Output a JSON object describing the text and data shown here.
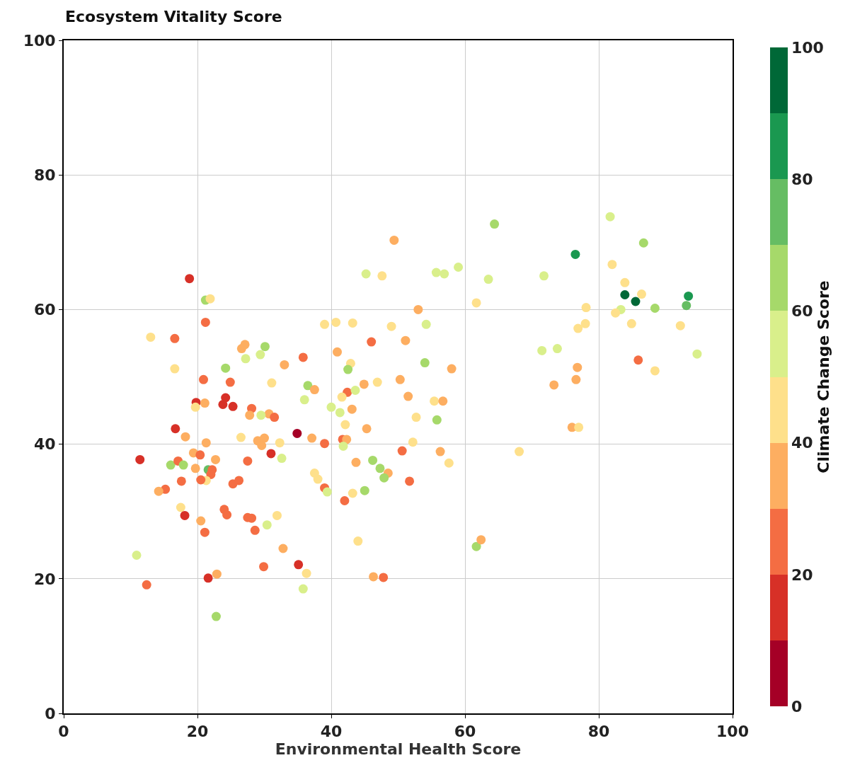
{
  "chart_data": {
    "type": "scatter",
    "ylabel": "Ecosystem Vitality Score",
    "xlabel": "Environmental Health Score",
    "clabel": "Climate Change Score",
    "x": [
      18.8,
      21.2,
      21.9,
      21.2,
      13.0,
      16.6,
      16.6,
      24.2,
      20.9,
      24.9,
      24.2,
      23.8,
      25.3,
      19.8,
      19.7,
      21.1,
      26.6,
      27.1,
      27.2,
      16.7,
      18.2,
      21.3,
      26.5,
      11.4,
      16.0,
      17.1,
      17.9,
      19.4,
      20.4,
      22.7,
      19.7,
      21.6,
      22.2,
      22.0,
      21.3,
      20.5,
      17.6,
      15.2,
      14.2,
      25.3,
      26.2,
      27.5,
      17.5,
      18.1,
      20.5,
      21.1,
      24.0,
      24.4,
      27.5,
      10.9,
      12.4,
      21.6,
      22.9,
      22.8,
      49.4,
      45.2,
      47.6,
      55.7,
      56.9,
      59.0,
      61.7,
      53.0,
      54.2,
      39.0,
      40.7,
      43.2,
      49.0,
      51.1,
      46.0,
      30.1,
      29.4,
      35.8,
      33.0,
      40.9,
      42.9,
      42.5,
      54.0,
      58.0,
      31.1,
      36.5,
      37.5,
      36.0,
      42.4,
      43.6,
      41.6,
      44.9,
      46.9,
      50.3,
      51.5,
      55.4,
      56.7,
      40.0,
      41.3,
      43.1,
      28.1,
      30.7,
      31.5,
      29.5,
      27.8,
      52.7,
      55.8,
      45.3,
      42.1,
      34.9,
      37.1,
      39.0,
      29.0,
      30.0,
      29.6,
      32.3,
      31.0,
      32.6,
      37.5,
      38.0,
      39.0,
      39.4,
      41.7,
      42.3,
      41.8,
      43.2,
      45.0,
      42.0,
      43.7,
      46.2,
      47.3,
      48.5,
      47.9,
      50.6,
      52.2,
      56.3,
      57.6,
      51.7,
      28.1,
      28.6,
      30.4,
      31.9,
      32.8,
      29.9,
      35.1,
      36.3,
      35.8,
      44.0,
      46.3,
      47.8,
      61.7,
      62.4,
      64.4,
      81.7,
      86.7,
      76.5,
      63.5,
      71.8,
      82.0,
      83.9,
      83.9,
      86.4,
      85.5,
      93.4,
      93.1,
      88.4,
      78.1,
      83.3,
      82.5,
      84.9,
      92.2,
      78.0,
      76.9,
      71.5,
      73.8,
      94.7,
      85.9,
      88.4,
      76.8,
      76.6,
      73.3,
      76.0,
      77.0,
      68.1
    ],
    "values": [
      64.6,
      61.4,
      61.6,
      58.1,
      55.9,
      55.7,
      51.2,
      51.3,
      49.6,
      49.2,
      46.9,
      45.9,
      45.6,
      46.2,
      45.5,
      46.1,
      54.2,
      54.8,
      52.7,
      42.3,
      41.1,
      40.2,
      41.0,
      37.7,
      36.9,
      37.5,
      36.9,
      38.7,
      38.4,
      37.7,
      36.4,
      36.2,
      36.2,
      35.5,
      34.6,
      34.7,
      34.5,
      33.3,
      33.0,
      34.1,
      34.6,
      37.5,
      30.6,
      29.4,
      28.6,
      26.9,
      30.3,
      29.5,
      29.1,
      23.5,
      19.1,
      20.1,
      20.7,
      14.4,
      70.3,
      65.3,
      65.0,
      65.5,
      65.3,
      66.3,
      61.0,
      60.0,
      57.8,
      57.8,
      58.1,
      58.0,
      57.5,
      55.4,
      55.2,
      54.5,
      53.3,
      52.9,
      51.8,
      53.7,
      52.0,
      51.1,
      52.1,
      51.2,
      49.1,
      48.7,
      48.1,
      46.6,
      47.7,
      48.0,
      47.0,
      48.9,
      49.2,
      49.6,
      47.1,
      46.4,
      46.4,
      45.5,
      44.7,
      45.2,
      45.3,
      44.5,
      44.0,
      44.3,
      44.3,
      44.0,
      43.6,
      42.3,
      42.9,
      41.6,
      40.9,
      40.1,
      40.5,
      40.9,
      39.8,
      40.2,
      38.6,
      37.9,
      35.7,
      34.8,
      33.5,
      32.9,
      40.7,
      40.7,
      39.7,
      32.7,
      33.1,
      31.6,
      37.3,
      37.6,
      36.4,
      35.7,
      35.0,
      39.0,
      40.3,
      38.9,
      37.2,
      34.5,
      29.0,
      27.2,
      28.0,
      29.4,
      24.5,
      21.8,
      22.1,
      20.8,
      18.5,
      25.6,
      20.3,
      20.2,
      24.8,
      25.8,
      72.7,
      73.8,
      69.9,
      68.2,
      64.5,
      65.0,
      66.7,
      64.0,
      62.2,
      62.3,
      61.2,
      62.0,
      60.6,
      60.2,
      60.3,
      60.0,
      59.5,
      57.9,
      57.6,
      57.9,
      57.2,
      53.9,
      54.2,
      53.4,
      52.5,
      50.9,
      51.4,
      49.6,
      48.8,
      42.5,
      42.5,
      38.9
    ],
    "colors": [
      "#d73027",
      "#a6d96a",
      "#fee08b",
      "#f46d43",
      "#fee08b",
      "#f46d43",
      "#fee08b",
      "#a6d96a",
      "#f46d43",
      "#f46d43",
      "#d73027",
      "#d73027",
      "#d73027",
      "#d73027",
      "#fee08b",
      "#fdae61",
      "#fdae61",
      "#fdae61",
      "#d9ef8b",
      "#d73027",
      "#fdae61",
      "#fdae61",
      "#fee08b",
      "#d73027",
      "#a6d96a",
      "#f46d43",
      "#a6d96a",
      "#fdae61",
      "#f46d43",
      "#fdae61",
      "#fdae61",
      "#66bd63",
      "#f46d43",
      "#f46d43",
      "#fee08b",
      "#f46d43",
      "#f46d43",
      "#f46d43",
      "#fdae61",
      "#f46d43",
      "#f46d43",
      "#f46d43",
      "#fee08b",
      "#d73027",
      "#fdae61",
      "#f46d43",
      "#f46d43",
      "#f46d43",
      "#f46d43",
      "#d9ef8b",
      "#f46d43",
      "#d73027",
      "#fdae61",
      "#a6d96a",
      "#fdae61",
      "#d9ef8b",
      "#fee08b",
      "#d9ef8b",
      "#d9ef8b",
      "#d9ef8b",
      "#fee08b",
      "#fdae61",
      "#d9ef8b",
      "#fee08b",
      "#fee08b",
      "#fee08b",
      "#fee08b",
      "#fdae61",
      "#f46d43",
      "#a6d96a",
      "#d9ef8b",
      "#f46d43",
      "#fdae61",
      "#fdae61",
      "#fee08b",
      "#a6d96a",
      "#a6d96a",
      "#fdae61",
      "#fee08b",
      "#a6d96a",
      "#fdae61",
      "#d9ef8b",
      "#f46d43",
      "#d9ef8b",
      "#fee08b",
      "#fdae61",
      "#fee08b",
      "#fdae61",
      "#fdae61",
      "#fee08b",
      "#fdae61",
      "#d9ef8b",
      "#d9ef8b",
      "#fdae61",
      "#f46d43",
      "#fdae61",
      "#f46d43",
      "#d9ef8b",
      "#fdae61",
      "#fee08b",
      "#a6d96a",
      "#fdae61",
      "#fee08b",
      "#a50026",
      "#fdae61",
      "#f46d43",
      "#fdae61",
      "#fdae61",
      "#fdae61",
      "#fee08b",
      "#d73027",
      "#d9ef8b",
      "#fee08b",
      "#fee08b",
      "#f46d43",
      "#d9ef8b",
      "#f46d43",
      "#fdae61",
      "#d9ef8b",
      "#fee08b",
      "#a6d96a",
      "#f46d43",
      "#fdae61",
      "#a6d96a",
      "#a6d96a",
      "#fdae61",
      "#a6d96a",
      "#f46d43",
      "#fee08b",
      "#fdae61",
      "#fee08b",
      "#f46d43",
      "#f46d43",
      "#f46d43",
      "#d9ef8b",
      "#fee08b",
      "#fdae61",
      "#f46d43",
      "#d73027",
      "#fee08b",
      "#d9ef8b",
      "#fee08b",
      "#fdae61",
      "#f46d43",
      "#a6d96a",
      "#fdae61",
      "#a6d96a",
      "#d9ef8b",
      "#a6d96a",
      "#1a9850",
      "#d9ef8b",
      "#d9ef8b",
      "#fee08b",
      "#fee08b",
      "#006837",
      "#fee08b",
      "#006837",
      "#1a9850",
      "#66bd63",
      "#a6d96a",
      "#fee08b",
      "#d9ef8b",
      "#fee08b",
      "#fee08b",
      "#fee08b",
      "#fee08b",
      "#fee08b",
      "#d9ef8b",
      "#d9ef8b",
      "#d9ef8b",
      "#f46d43",
      "#fee08b",
      "#fdae61",
      "#fdae61",
      "#fdae61",
      "#fdae61",
      "#fee08b",
      "#fee08b"
    ],
    "xlim": [
      0,
      100
    ],
    "ylim": [
      0,
      100
    ],
    "xticks": [
      0,
      20,
      40,
      60,
      80,
      100
    ],
    "yticks": [
      0,
      20,
      40,
      60,
      80,
      100
    ],
    "clim": [
      0,
      100
    ],
    "cticks": [
      0,
      20,
      40,
      60,
      80,
      100
    ],
    "grid": true,
    "marker": "circle"
  }
}
